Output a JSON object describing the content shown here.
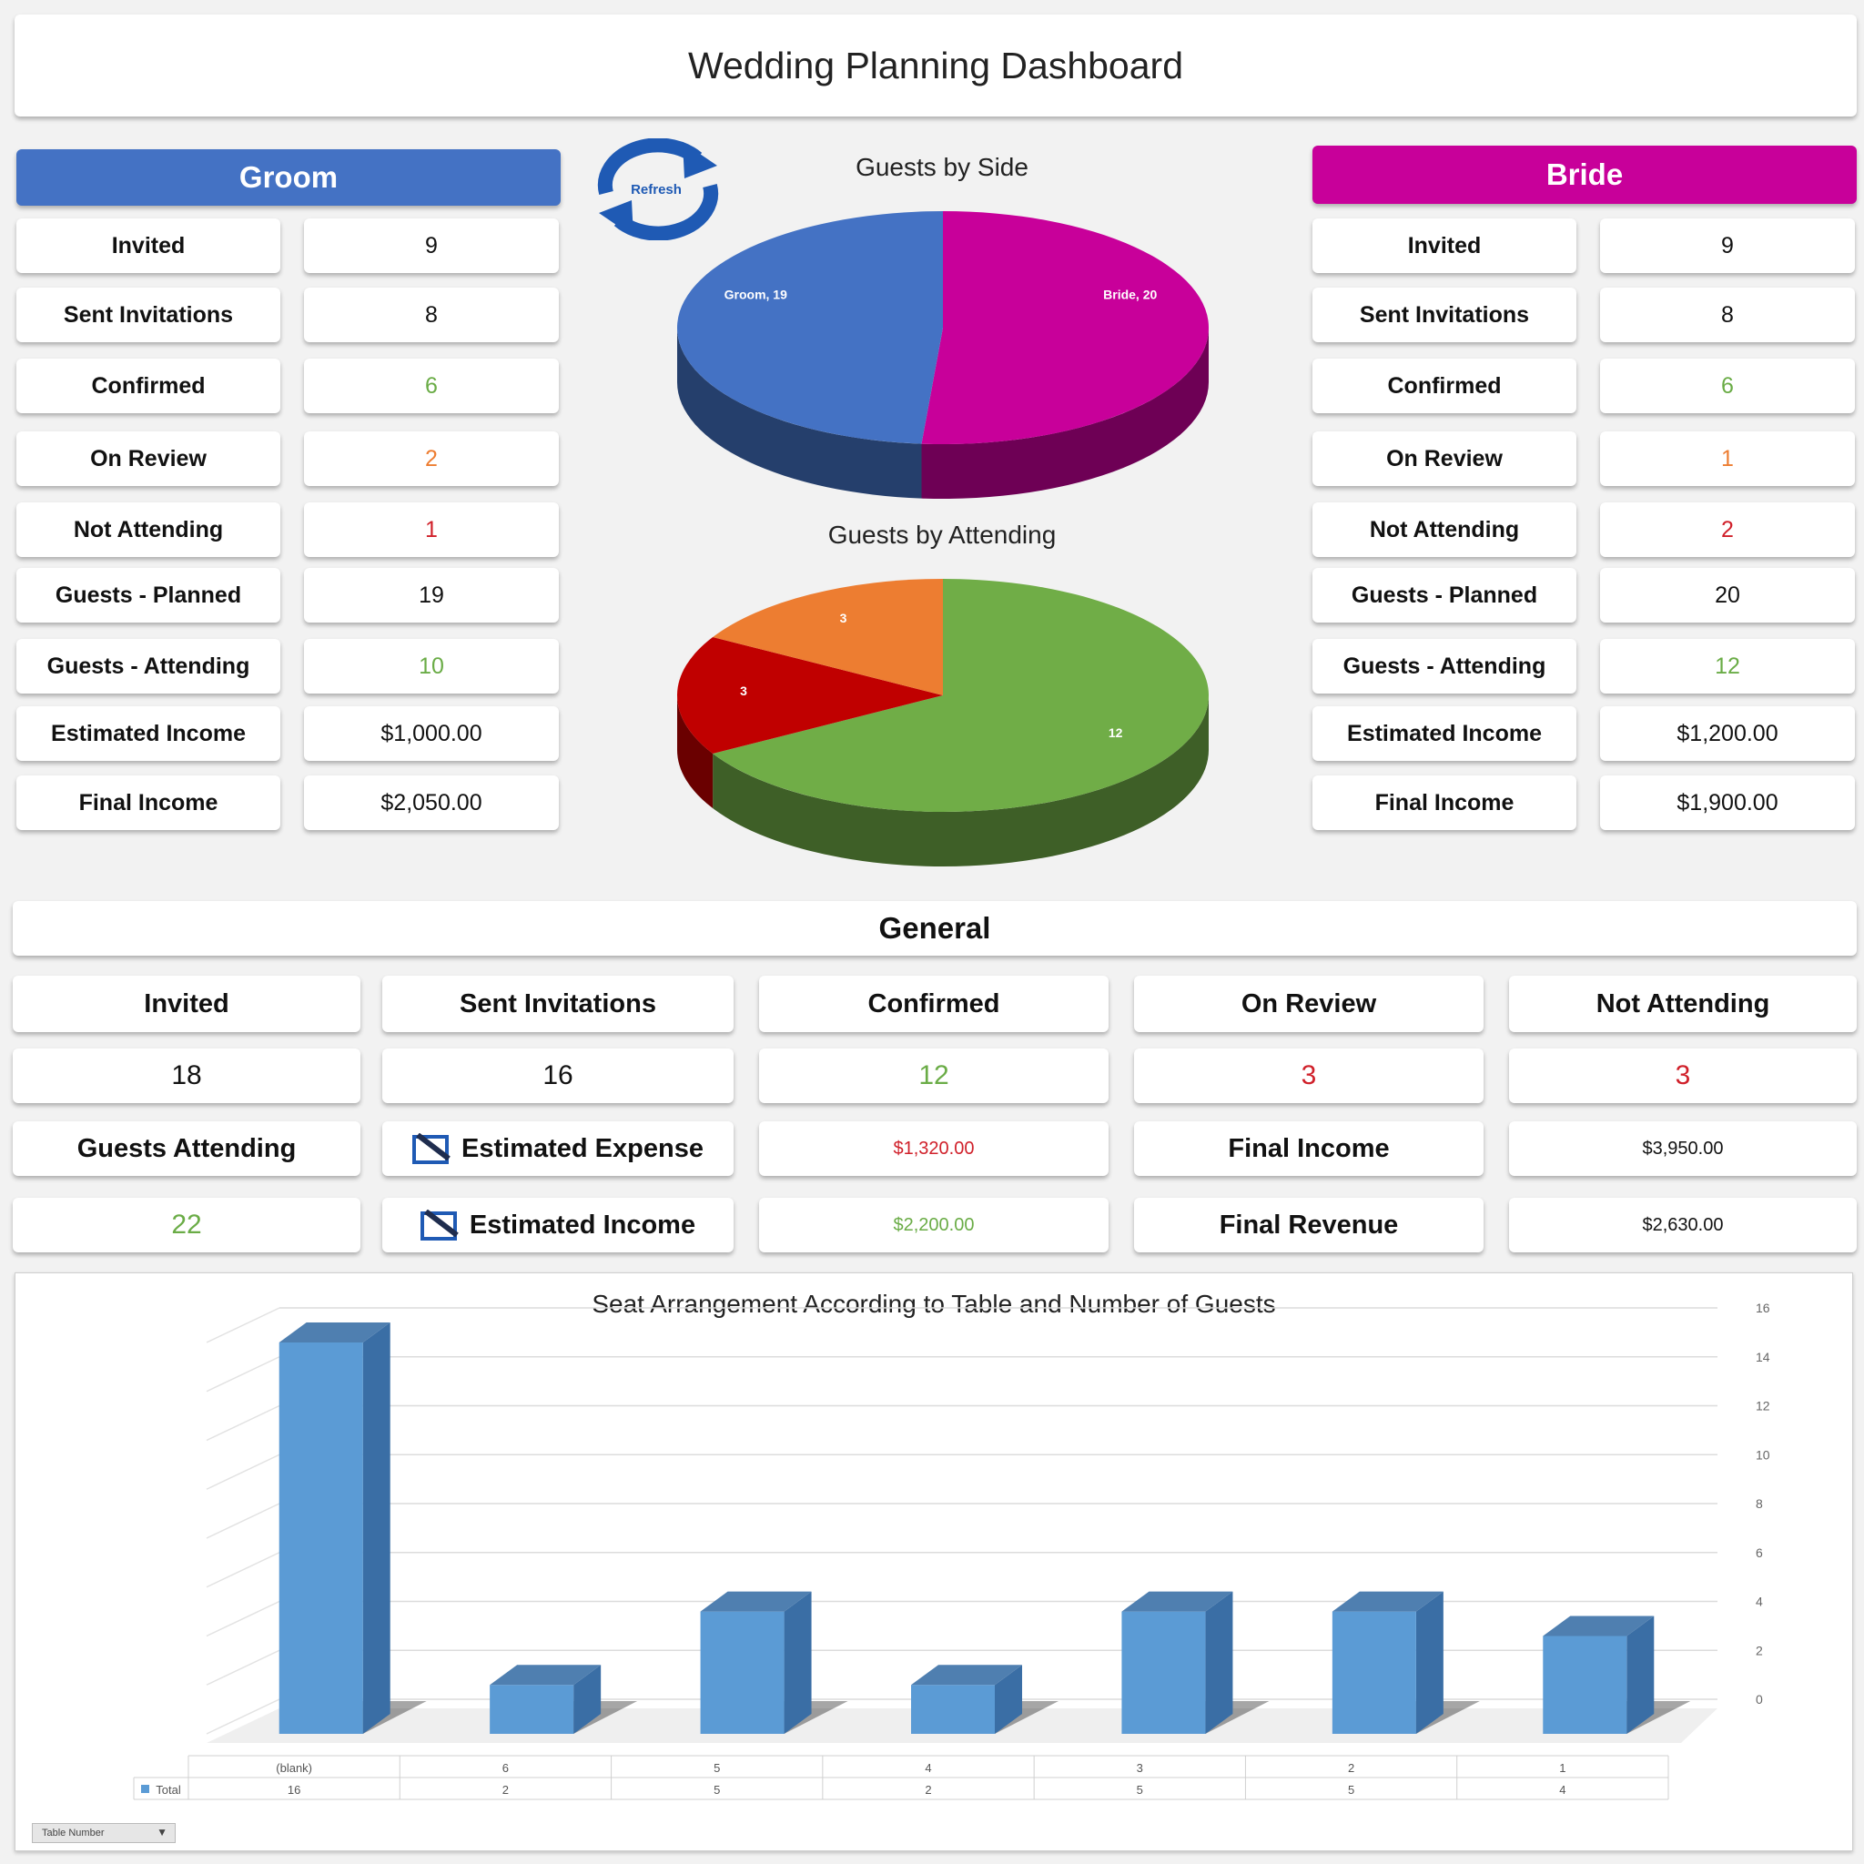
{
  "title": "Wedding Planning Dashboard",
  "refresh_label": "Refresh",
  "groom": {
    "header": "Groom",
    "rows": [
      {
        "label": "Invited",
        "value": "9"
      },
      {
        "label": "Sent Invitations",
        "value": "8"
      },
      {
        "label": "Confirmed",
        "value": "6"
      },
      {
        "label": "On Review",
        "value": "2"
      },
      {
        "label": "Not Attending",
        "value": "1"
      },
      {
        "label": "Guests - Planned",
        "value": "19"
      },
      {
        "label": "Guests - Attending",
        "value": "10"
      },
      {
        "label": "Estimated Income",
        "value": "$1,000.00"
      },
      {
        "label": "Final Income",
        "value": "$2,050.00"
      }
    ]
  },
  "bride": {
    "header": "Bride",
    "rows": [
      {
        "label": "Invited",
        "value": "9"
      },
      {
        "label": "Sent Invitations",
        "value": "8"
      },
      {
        "label": "Confirmed",
        "value": "6"
      },
      {
        "label": "On Review",
        "value": "1"
      },
      {
        "label": "Not Attending",
        "value": "2"
      },
      {
        "label": "Guests - Planned",
        "value": "20"
      },
      {
        "label": "Guests - Attending",
        "value": "12"
      },
      {
        "label": "Estimated Income",
        "value": "$1,200.00"
      },
      {
        "label": "Final Income",
        "value": "$1,900.00"
      }
    ]
  },
  "general": {
    "header": "General",
    "labels": [
      "Invited",
      "Sent Invitations",
      "Confirmed",
      "On Review",
      "Not Attending"
    ],
    "values": [
      "18",
      "16",
      "12",
      "3",
      "3"
    ],
    "guests_attending_label": "Guests Attending",
    "guests_attending_value": "22",
    "estimated_expense_label": "Estimated Expense",
    "estimated_expense_value": "$1,320.00",
    "final_income_label": "Final Income",
    "final_income_value": "$3,950.00",
    "estimated_income_label": "Estimated Income",
    "estimated_income_value": "$2,200.00",
    "final_revenue_label": "Final Revenue",
    "final_revenue_value": "$2,630.00"
  },
  "colors": {
    "groom": "#4472c4",
    "bride": "#c8009a",
    "attending": "#70ad47",
    "not_attending": "#c00000",
    "on_review": "#ed7d31",
    "bar": "#5b9bd5",
    "green_text": "#6aac46",
    "orange_text": "#ed7d31",
    "red_text": "#d0202a"
  },
  "chart_data": [
    {
      "type": "pie",
      "title": "Guests by Side",
      "labels": [
        "Groom",
        "Bride"
      ],
      "values": [
        19,
        20
      ],
      "data_labels": [
        "Groom, 19",
        "Bride, 20"
      ]
    },
    {
      "type": "pie",
      "title": "Guests by Attending",
      "values": [
        12,
        3,
        3
      ],
      "data_labels": [
        "12",
        "3",
        "3"
      ]
    },
    {
      "type": "bar",
      "title": "Seat Arrangement According to Table and Number of Guests",
      "categories": [
        "(blank)",
        "6",
        "5",
        "4",
        "3",
        "2",
        "1"
      ],
      "series": [
        {
          "name": "Total",
          "values": [
            16,
            2,
            5,
            2,
            5,
            5,
            4
          ]
        }
      ],
      "table_values": [
        "16",
        "2",
        "5",
        "2",
        "5",
        "5",
        "4"
      ],
      "ylim": [
        0,
        16
      ],
      "yticks": [
        "0",
        "2",
        "4",
        "6",
        "8",
        "10",
        "12",
        "14",
        "16"
      ],
      "legend": "Total",
      "field_button": "Table Number"
    }
  ]
}
